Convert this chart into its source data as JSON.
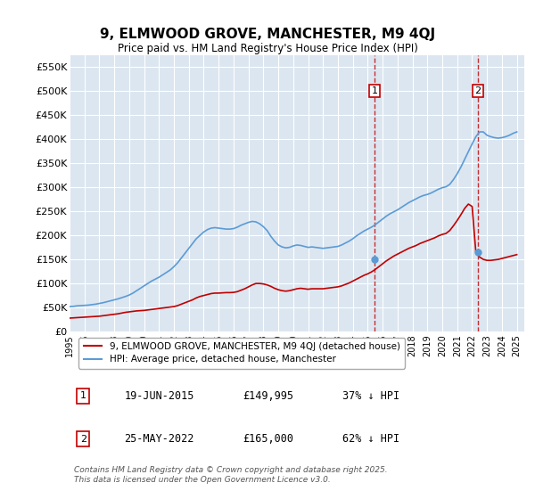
{
  "title": "9, ELMWOOD GROVE, MANCHESTER, M9 4QJ",
  "subtitle": "Price paid vs. HM Land Registry's House Price Index (HPI)",
  "ylabel_ticks": [
    "£0",
    "£50K",
    "£100K",
    "£150K",
    "£200K",
    "£250K",
    "£300K",
    "£350K",
    "£400K",
    "£450K",
    "£500K",
    "£550K"
  ],
  "ytick_values": [
    0,
    50000,
    100000,
    150000,
    200000,
    250000,
    300000,
    350000,
    400000,
    450000,
    500000,
    550000
  ],
  "ylim": [
    0,
    575000
  ],
  "xlim_start": 1995.0,
  "xlim_end": 2025.5,
  "marker1_x": 2015.46,
  "marker1_y": 149995,
  "marker1_label": "1",
  "marker1_date": "19-JUN-2015",
  "marker1_price": "£149,995",
  "marker1_hpi": "37% ↓ HPI",
  "marker2_x": 2022.4,
  "marker2_y": 165000,
  "marker2_label": "2",
  "marker2_date": "25-MAY-2022",
  "marker2_price": "£165,000",
  "marker2_hpi": "62% ↓ HPI",
  "hpi_color": "#5b9bd5",
  "price_color": "#c00000",
  "background_plot": "#dce6f1",
  "background_fig": "#ffffff",
  "grid_color": "#ffffff",
  "legend_label_price": "9, ELMWOOD GROVE, MANCHESTER, M9 4QJ (detached house)",
  "legend_label_hpi": "HPI: Average price, detached house, Manchester",
  "footer": "Contains HM Land Registry data © Crown copyright and database right 2025.\nThis data is licensed under the Open Government Licence v3.0.",
  "hpi_data_x": [
    1995.0,
    1995.25,
    1995.5,
    1995.75,
    1996.0,
    1996.25,
    1996.5,
    1996.75,
    1997.0,
    1997.25,
    1997.5,
    1997.75,
    1998.0,
    1998.25,
    1998.5,
    1998.75,
    1999.0,
    1999.25,
    1999.5,
    1999.75,
    2000.0,
    2000.25,
    2000.5,
    2000.75,
    2001.0,
    2001.25,
    2001.5,
    2001.75,
    2002.0,
    2002.25,
    2002.5,
    2002.75,
    2003.0,
    2003.25,
    2003.5,
    2003.75,
    2004.0,
    2004.25,
    2004.5,
    2004.75,
    2005.0,
    2005.25,
    2005.5,
    2005.75,
    2006.0,
    2006.25,
    2006.5,
    2006.75,
    2007.0,
    2007.25,
    2007.5,
    2007.75,
    2008.0,
    2008.25,
    2008.5,
    2008.75,
    2009.0,
    2009.25,
    2009.5,
    2009.75,
    2010.0,
    2010.25,
    2010.5,
    2010.75,
    2011.0,
    2011.25,
    2011.5,
    2011.75,
    2012.0,
    2012.25,
    2012.5,
    2012.75,
    2013.0,
    2013.25,
    2013.5,
    2013.75,
    2014.0,
    2014.25,
    2014.5,
    2014.75,
    2015.0,
    2015.25,
    2015.5,
    2015.75,
    2016.0,
    2016.25,
    2016.5,
    2016.75,
    2017.0,
    2017.25,
    2017.5,
    2017.75,
    2018.0,
    2018.25,
    2018.5,
    2018.75,
    2019.0,
    2019.25,
    2019.5,
    2019.75,
    2020.0,
    2020.25,
    2020.5,
    2020.75,
    2021.0,
    2021.25,
    2021.5,
    2021.75,
    2022.0,
    2022.25,
    2022.5,
    2022.75,
    2023.0,
    2023.25,
    2023.5,
    2023.75,
    2024.0,
    2024.25,
    2024.5,
    2024.75,
    2025.0
  ],
  "hpi_data_y": [
    52000,
    52500,
    53500,
    54000,
    54500,
    55000,
    56000,
    57000,
    58500,
    60000,
    62000,
    64000,
    66000,
    68000,
    70500,
    73000,
    76000,
    80000,
    85000,
    90000,
    95000,
    100000,
    105000,
    109000,
    113000,
    118000,
    123000,
    128000,
    135000,
    143000,
    153000,
    163000,
    173000,
    183000,
    193000,
    200000,
    207000,
    212000,
    215000,
    216000,
    215000,
    214000,
    213000,
    213000,
    214000,
    217000,
    221000,
    224000,
    227000,
    229000,
    228000,
    224000,
    218000,
    210000,
    198000,
    188000,
    180000,
    176000,
    174000,
    175000,
    178000,
    180000,
    179000,
    177000,
    175000,
    176000,
    175000,
    174000,
    173000,
    174000,
    175000,
    176000,
    177000,
    180000,
    184000,
    188000,
    193000,
    199000,
    204000,
    209000,
    213000,
    217000,
    222000,
    228000,
    234000,
    240000,
    245000,
    249000,
    253000,
    258000,
    263000,
    268000,
    272000,
    276000,
    280000,
    283000,
    285000,
    288000,
    292000,
    296000,
    299000,
    301000,
    306000,
    316000,
    328000,
    342000,
    358000,
    374000,
    390000,
    405000,
    415000,
    415000,
    408000,
    405000,
    403000,
    402000,
    403000,
    405000,
    408000,
    412000,
    415000
  ],
  "price_data_x": [
    1995.0,
    1995.25,
    1995.5,
    1995.75,
    1996.0,
    1996.25,
    1996.5,
    1996.75,
    1997.0,
    1997.25,
    1997.5,
    1997.75,
    1998.0,
    1998.25,
    1998.5,
    1998.75,
    1999.0,
    1999.25,
    1999.5,
    1999.75,
    2000.0,
    2000.25,
    2000.5,
    2000.75,
    2001.0,
    2001.25,
    2001.5,
    2001.75,
    2002.0,
    2002.25,
    2002.5,
    2002.75,
    2003.0,
    2003.25,
    2003.5,
    2003.75,
    2004.0,
    2004.25,
    2004.5,
    2004.75,
    2005.0,
    2005.25,
    2005.5,
    2005.75,
    2006.0,
    2006.25,
    2006.5,
    2006.75,
    2007.0,
    2007.25,
    2007.5,
    2007.75,
    2008.0,
    2008.25,
    2008.5,
    2008.75,
    2009.0,
    2009.25,
    2009.5,
    2009.75,
    2010.0,
    2010.25,
    2010.5,
    2010.75,
    2011.0,
    2011.25,
    2011.5,
    2011.75,
    2012.0,
    2012.25,
    2012.5,
    2012.75,
    2013.0,
    2013.25,
    2013.5,
    2013.75,
    2014.0,
    2014.25,
    2014.5,
    2014.75,
    2015.0,
    2015.25,
    2015.5,
    2015.75,
    2016.0,
    2016.25,
    2016.5,
    2016.75,
    2017.0,
    2017.25,
    2017.5,
    2017.75,
    2018.0,
    2018.25,
    2018.5,
    2018.75,
    2019.0,
    2019.25,
    2019.5,
    2019.75,
    2020.0,
    2020.25,
    2020.5,
    2020.75,
    2021.0,
    2021.25,
    2021.5,
    2021.75,
    2022.0,
    2022.25,
    2022.5,
    2022.75,
    2023.0,
    2023.25,
    2023.5,
    2023.75,
    2024.0,
    2024.25,
    2024.5,
    2024.75,
    2025.0
  ],
  "price_data_y": [
    28000,
    28500,
    29000,
    29500,
    30000,
    30500,
    31000,
    31500,
    32000,
    33000,
    34000,
    35000,
    36000,
    37000,
    38500,
    40000,
    41000,
    42000,
    43000,
    43500,
    44000,
    45000,
    46000,
    47000,
    48000,
    49000,
    50000,
    51000,
    52000,
    54000,
    57000,
    60000,
    63000,
    66000,
    70000,
    73000,
    75000,
    77000,
    79000,
    80000,
    80000,
    80500,
    81000,
    81000,
    81500,
    83000,
    86000,
    89000,
    93000,
    97000,
    100000,
    100000,
    99000,
    97000,
    94000,
    90000,
    87000,
    85000,
    84000,
    85000,
    87000,
    89000,
    90000,
    89000,
    88000,
    89000,
    89000,
    89000,
    89000,
    90000,
    91000,
    92000,
    93000,
    95000,
    98000,
    101000,
    105000,
    109000,
    113000,
    117000,
    120000,
    124000,
    129000,
    135000,
    141000,
    147000,
    152000,
    157000,
    161000,
    165000,
    169000,
    173000,
    176000,
    179000,
    183000,
    186000,
    189000,
    192000,
    195000,
    199000,
    202000,
    204000,
    210000,
    220000,
    231000,
    243000,
    256000,
    265000,
    260000,
    165000,
    155000,
    150000,
    148000,
    148000,
    149000,
    150000,
    152000,
    154000,
    156000,
    158000,
    160000
  ]
}
